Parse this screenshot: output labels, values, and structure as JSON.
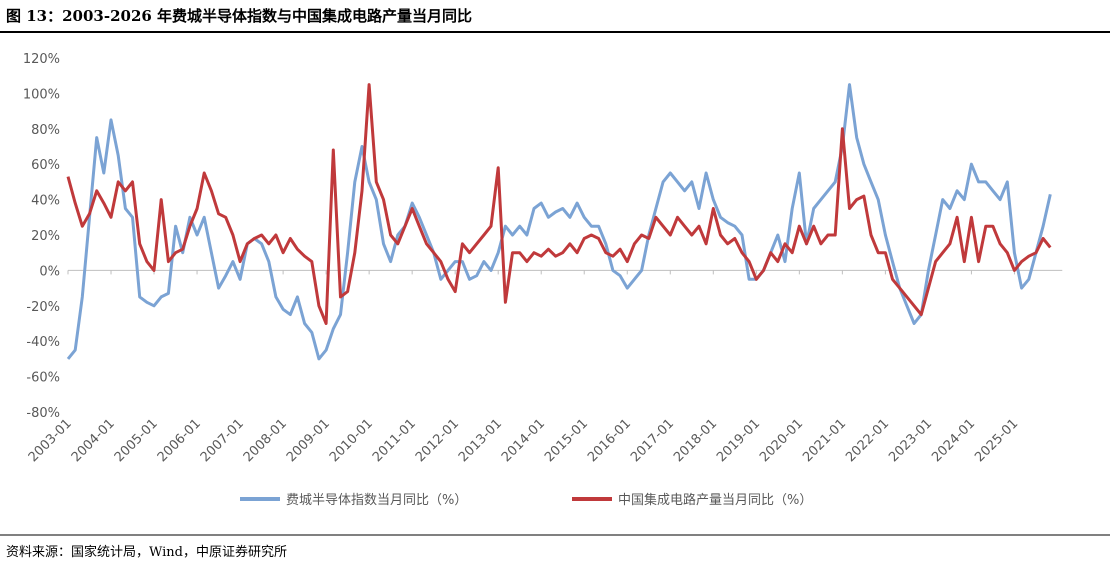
{
  "chart_data": {
    "type": "line",
    "title": "图 13：2003-2026 年费城半导体指数与中国集成电路产量当月同比",
    "source": "资料来源：国家统计局，Wind，中原证券研究所",
    "x": [
      "2003-01",
      "2003-03",
      "2003-05",
      "2003-07",
      "2003-09",
      "2003-11",
      "2004-01",
      "2004-03",
      "2004-05",
      "2004-07",
      "2004-09",
      "2004-11",
      "2005-01",
      "2005-03",
      "2005-05",
      "2005-07",
      "2005-09",
      "2005-11",
      "2006-01",
      "2006-03",
      "2006-05",
      "2006-07",
      "2006-09",
      "2006-11",
      "2007-01",
      "2007-03",
      "2007-05",
      "2007-07",
      "2007-09",
      "2007-11",
      "2008-01",
      "2008-03",
      "2008-05",
      "2008-07",
      "2008-09",
      "2008-11",
      "2009-01",
      "2009-03",
      "2009-05",
      "2009-07",
      "2009-09",
      "2009-11",
      "2010-01",
      "2010-03",
      "2010-05",
      "2010-07",
      "2010-09",
      "2010-11",
      "2011-01",
      "2011-03",
      "2011-05",
      "2011-07",
      "2011-09",
      "2011-11",
      "2012-01",
      "2012-03",
      "2012-05",
      "2012-07",
      "2012-09",
      "2012-11",
      "2013-01",
      "2013-03",
      "2013-05",
      "2013-07",
      "2013-09",
      "2013-11",
      "2014-01",
      "2014-03",
      "2014-05",
      "2014-07",
      "2014-09",
      "2014-11",
      "2015-01",
      "2015-03",
      "2015-05",
      "2015-07",
      "2015-09",
      "2015-11",
      "2016-01",
      "2016-03",
      "2016-05",
      "2016-07",
      "2016-09",
      "2016-11",
      "2017-01",
      "2017-03",
      "2017-05",
      "2017-07",
      "2017-09",
      "2017-11",
      "2018-01",
      "2018-03",
      "2018-05",
      "2018-07",
      "2018-09",
      "2018-11",
      "2019-01",
      "2019-03",
      "2019-05",
      "2019-07",
      "2019-09",
      "2019-11",
      "2020-01",
      "2020-03",
      "2020-05",
      "2020-07",
      "2020-09",
      "2020-11",
      "2021-01",
      "2021-03",
      "2021-05",
      "2021-07",
      "2021-09",
      "2021-11",
      "2022-01",
      "2022-03",
      "2022-05",
      "2022-07",
      "2022-09",
      "2022-11",
      "2023-01",
      "2023-03",
      "2023-05",
      "2023-07",
      "2023-09",
      "2023-11",
      "2024-01",
      "2024-03",
      "2024-05",
      "2024-07",
      "2024-09",
      "2024-11",
      "2025-01",
      "2025-03",
      "2025-05",
      "2025-07",
      "2025-09",
      "2025-11"
    ],
    "xticks": [
      "2003-01",
      "2004-01",
      "2005-01",
      "2006-01",
      "2007-01",
      "2008-01",
      "2009-01",
      "2010-01",
      "2011-01",
      "2012-01",
      "2013-01",
      "2014-01",
      "2015-01",
      "2016-01",
      "2017-01",
      "2018-01",
      "2019-01",
      "2020-01",
      "2021-01",
      "2022-01",
      "2023-01",
      "2024-01",
      "2025-01"
    ],
    "ylim": [
      -80,
      120
    ],
    "yticks": [
      {
        "value": -80,
        "label": "-80%"
      },
      {
        "value": -60,
        "label": "-60%"
      },
      {
        "value": -40,
        "label": "-40%"
      },
      {
        "value": -20,
        "label": "-20%"
      },
      {
        "value": 0,
        "label": "0%"
      },
      {
        "value": 20,
        "label": "20%"
      },
      {
        "value": 40,
        "label": "40%"
      },
      {
        "value": 60,
        "label": "60%"
      },
      {
        "value": 80,
        "label": "80%"
      },
      {
        "value": 100,
        "label": "100%"
      },
      {
        "value": 120,
        "label": "120%"
      }
    ],
    "series": [
      {
        "name": "费城半导体指数当月同比（%）",
        "color": "#7ba3d4",
        "values": [
          -50,
          -45,
          -15,
          30,
          75,
          55,
          85,
          65,
          35,
          30,
          -15,
          -18,
          -20,
          -15,
          -13,
          25,
          10,
          30,
          20,
          30,
          10,
          -10,
          -3,
          5,
          -5,
          15,
          18,
          15,
          5,
          -15,
          -22,
          -25,
          -15,
          -30,
          -35,
          -50,
          -45,
          -33,
          -25,
          10,
          50,
          70,
          50,
          40,
          15,
          5,
          20,
          25,
          38,
          30,
          20,
          10,
          -5,
          0,
          5,
          5,
          -5,
          -3,
          5,
          0,
          10,
          25,
          20,
          25,
          20,
          35,
          38,
          30,
          33,
          35,
          30,
          38,
          30,
          25,
          25,
          15,
          0,
          -3,
          -10,
          -5,
          0,
          20,
          35,
          50,
          55,
          50,
          45,
          50,
          35,
          55,
          40,
          30,
          27,
          25,
          20,
          -5,
          -5,
          0,
          10,
          20,
          5,
          35,
          55,
          15,
          35,
          40,
          45,
          50,
          70,
          105,
          75,
          60,
          50,
          40,
          20,
          5,
          -10,
          -20,
          -30,
          -25,
          0,
          20,
          40,
          35,
          45,
          40,
          60,
          50,
          50,
          45,
          40,
          50,
          10,
          -10,
          -5,
          10,
          25,
          43
        ]
      },
      {
        "name": "中国集成电路产量当月同比（%）",
        "color": "#c0393b",
        "values": [
          53,
          38,
          25,
          32,
          45,
          38,
          30,
          50,
          45,
          50,
          15,
          5,
          0,
          40,
          5,
          10,
          12,
          25,
          35,
          55,
          45,
          32,
          30,
          20,
          5,
          15,
          18,
          20,
          15,
          20,
          10,
          18,
          12,
          8,
          5,
          -20,
          -30,
          68,
          -15,
          -12,
          10,
          45,
          105,
          50,
          40,
          20,
          15,
          25,
          35,
          25,
          15,
          10,
          5,
          -5,
          -12,
          15,
          10,
          15,
          20,
          25,
          58,
          -18,
          10,
          10,
          5,
          10,
          8,
          12,
          8,
          10,
          15,
          10,
          18,
          20,
          18,
          10,
          8,
          12,
          5,
          15,
          20,
          18,
          30,
          25,
          20,
          30,
          25,
          20,
          25,
          15,
          35,
          20,
          15,
          18,
          10,
          5,
          -5,
          0,
          10,
          5,
          15,
          10,
          25,
          15,
          25,
          15,
          20,
          20,
          80,
          35,
          40,
          42,
          20,
          10,
          10,
          -5,
          -10,
          -15,
          -20,
          -25,
          -10,
          5,
          10,
          15,
          30,
          5,
          30,
          5,
          25,
          25,
          15,
          10,
          0,
          5,
          8,
          10,
          18,
          13
        ]
      }
    ]
  }
}
